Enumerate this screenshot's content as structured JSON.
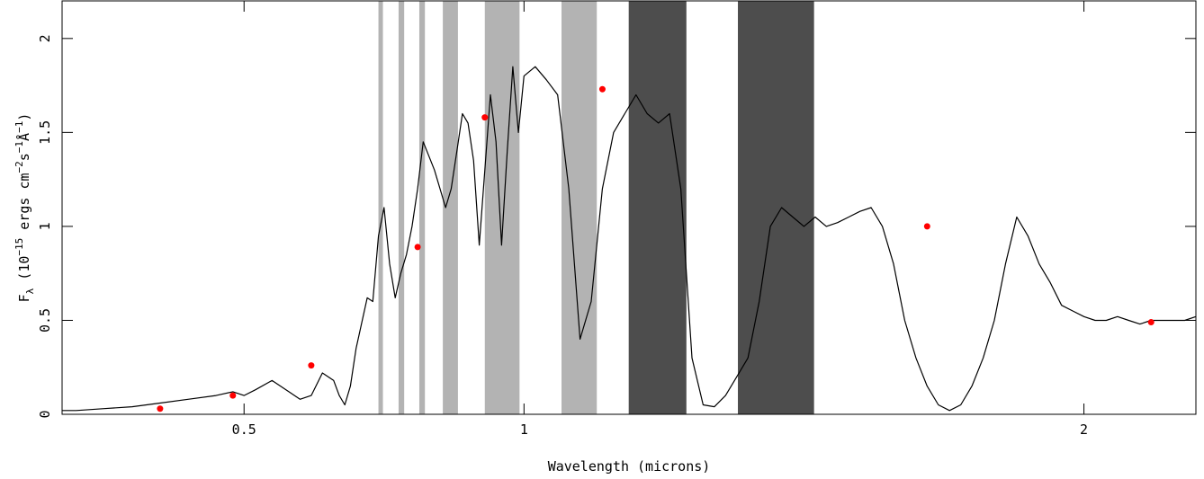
{
  "chart_data": {
    "type": "line",
    "title": "",
    "xlabel": "Wavelength (microns)",
    "ylabel": {
      "base": "F",
      "sub": "λ",
      "open": " (10",
      "exp1": "−15",
      "mid1": " ergs cm",
      "exp2": "−2",
      "mid2": "s",
      "exp3": "−1",
      "mid3": "Å",
      "exp4": "−1",
      "close": ")"
    },
    "xlim": [
      0.175,
      2.2
    ],
    "ylim": [
      0,
      2.2
    ],
    "x_ticks": [
      {
        "value": 0.5,
        "label": "0.5"
      },
      {
        "value": 1,
        "label": "1"
      },
      {
        "value": 2,
        "label": "2"
      }
    ],
    "y_ticks": [
      {
        "value": 0,
        "label": "0"
      },
      {
        "value": 0.5,
        "label": "0.5"
      },
      {
        "value": 1,
        "label": "1"
      },
      {
        "value": 1.5,
        "label": "1.5"
      },
      {
        "value": 2,
        "label": "2"
      }
    ],
    "series": [
      {
        "style": "line",
        "color": "#000000",
        "x": [
          0.175,
          0.2,
          0.25,
          0.3,
          0.35,
          0.4,
          0.45,
          0.48,
          0.5,
          0.52,
          0.55,
          0.58,
          0.6,
          0.62,
          0.64,
          0.66,
          0.67,
          0.68,
          0.69,
          0.7,
          0.72,
          0.73,
          0.74,
          0.75,
          0.76,
          0.77,
          0.78,
          0.79,
          0.8,
          0.81,
          0.82,
          0.84,
          0.86,
          0.87,
          0.88,
          0.89,
          0.9,
          0.91,
          0.92,
          0.93,
          0.94,
          0.95,
          0.96,
          0.97,
          0.98,
          0.99,
          1.0,
          1.02,
          1.04,
          1.06,
          1.08,
          1.1,
          1.12,
          1.14,
          1.16,
          1.18,
          1.2,
          1.22,
          1.24,
          1.26,
          1.28,
          1.3,
          1.32,
          1.34,
          1.36,
          1.38,
          1.4,
          1.42,
          1.44,
          1.46,
          1.48,
          1.5,
          1.52,
          1.54,
          1.56,
          1.58,
          1.6,
          1.62,
          1.64,
          1.66,
          1.68,
          1.7,
          1.72,
          1.74,
          1.76,
          1.78,
          1.8,
          1.82,
          1.84,
          1.86,
          1.88,
          1.9,
          1.92,
          1.94,
          1.96,
          1.98,
          2.0,
          2.02,
          2.04,
          2.06,
          2.08,
          2.1,
          2.12,
          2.14,
          2.16,
          2.18,
          2.2
        ],
        "y": [
          0.02,
          0.02,
          0.03,
          0.04,
          0.06,
          0.08,
          0.1,
          0.12,
          0.1,
          0.13,
          0.18,
          0.12,
          0.08,
          0.1,
          0.22,
          0.18,
          0.1,
          0.05,
          0.15,
          0.35,
          0.62,
          0.6,
          0.95,
          1.1,
          0.8,
          0.62,
          0.75,
          0.85,
          1.0,
          1.2,
          1.45,
          1.3,
          1.1,
          1.2,
          1.4,
          1.6,
          1.55,
          1.35,
          0.9,
          1.3,
          1.7,
          1.45,
          0.9,
          1.4,
          1.85,
          1.5,
          1.8,
          1.85,
          1.78,
          1.7,
          1.2,
          0.4,
          0.6,
          1.2,
          1.5,
          1.6,
          1.7,
          1.6,
          1.55,
          1.6,
          1.2,
          0.3,
          0.05,
          0.04,
          0.1,
          0.2,
          0.3,
          0.6,
          1.0,
          1.1,
          1.05,
          1.0,
          1.05,
          1.0,
          1.02,
          1.05,
          1.08,
          1.1,
          1.0,
          0.8,
          0.5,
          0.3,
          0.15,
          0.05,
          0.02,
          0.05,
          0.15,
          0.3,
          0.5,
          0.8,
          1.05,
          0.95,
          0.8,
          0.7,
          0.58,
          0.55,
          0.52,
          0.5,
          0.5,
          0.52,
          0.5,
          0.48,
          0.5,
          0.5,
          0.5,
          0.5,
          0.52
        ]
      },
      {
        "style": "scatter",
        "color": "#ff0000",
        "x": [
          0.35,
          0.48,
          0.62,
          0.81,
          0.93,
          1.14,
          1.72,
          2.12
        ],
        "y": [
          0.03,
          0.1,
          0.26,
          0.89,
          1.58,
          1.73,
          1.0,
          0.49
        ]
      }
    ],
    "shaded_bands": [
      {
        "x": [
          0.74,
          0.748
        ],
        "color": "#b3b3b3"
      },
      {
        "x": [
          0.776,
          0.786
        ],
        "color": "#b3b3b3"
      },
      {
        "x": [
          0.813,
          0.823
        ],
        "color": "#b3b3b3"
      },
      {
        "x": [
          0.855,
          0.882
        ],
        "color": "#b3b3b3"
      },
      {
        "x": [
          0.93,
          0.992
        ],
        "color": "#b3b3b3"
      },
      {
        "x": [
          1.067,
          1.13
        ],
        "color": "#b3b3b3"
      },
      {
        "x": [
          1.187,
          1.29
        ],
        "color": "#4d4d4d"
      },
      {
        "x": [
          1.382,
          1.518
        ],
        "color": "#4d4d4d"
      }
    ],
    "grid": false,
    "legend": "none"
  }
}
